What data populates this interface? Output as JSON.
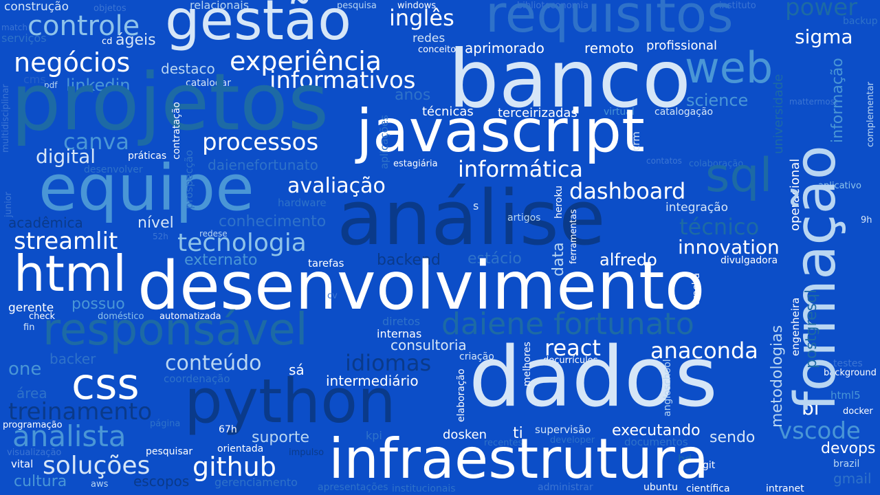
{
  "palette": {
    "background": "#0c4ec8",
    "white": "#ffffff",
    "pale": "#d6e6f7",
    "light": "#b9d6f2",
    "sky": "#8ec3ea",
    "steel": "#4a96d6",
    "mid": "#2f72c9",
    "faint": "#3c75d3",
    "dim": "#2661c8",
    "teal": "#1d6aa5",
    "navy": "#0a3a8a",
    "dark": "#072f73"
  },
  "words": {
    "construcao": "construção",
    "objetos": "objetos",
    "relacionais": "relacionais",
    "pesquisa": "pesquisa",
    "windows": "windows",
    "biblioteconomia": "biblioteconomia",
    "instituto": "instituto",
    "power": "power",
    "gestao": "gestão",
    "controle": "controle",
    "requisitos": "requisitos",
    "ingles": "inglês",
    "backup": "backup",
    "sigma": "sigma",
    "match": "match",
    "servicos": "serviços",
    "cd": "cd",
    "ageis": "ágeis",
    "redes": "redes",
    "conceitos": "conceitos",
    "aprimorado": "aprimorado",
    "remoto": "remoto",
    "profissional": "profissional",
    "negocios": "negócios",
    "experiencia": "experiência",
    "banco": "banco",
    "web": "web",
    "formacao": "formação",
    "destaco": "destaco",
    "informativos": "informativos",
    "cms": "cms",
    "pdf": "pdf",
    "linkedin": "linkedin",
    "catalogar": "catalogar",
    "anos": "anos",
    "projetos": "projetos",
    "science": "science",
    "mattermost": "mattermost",
    "tecnicas": "técnicas",
    "terceirizadas": "terceirizadas",
    "virtual": "virtual",
    "catalogacao": "catalogação",
    "javascript": "javascript",
    "canva": "canva",
    "processos": "processos",
    "digital": "digital",
    "praticas": "práticas",
    "daienefortunato": "daienefortunato",
    "estagiaria": "estagiária",
    "informatica": "informática",
    "contatos": "contatos",
    "colaboracao": "colaboração",
    "desenvolver": "desenvolver",
    "equipe": "equipe",
    "sql": "sql",
    "aplicativo": "aplicativo",
    "avaliacao": "avaliação",
    "dashboard": "dashboard",
    "hardware": "hardware",
    "integracao": "integração",
    "analise": "análise",
    "academica": "acadêmica",
    "nivel": "nível",
    "conhecimento": "conhecimento",
    "s": "s",
    "artigos": "artigos",
    "tecnico": "técnico",
    "9h": "9h",
    "redese": "redese",
    "52h": "52h",
    "streamlit": "streamlit",
    "tecnologia": "tecnologia",
    "innovation": "innovation",
    "externato": "externato",
    "tarefas": "tarefas",
    "backend": "backend",
    "estacio": "estácio",
    "alfredo": "alfredo",
    "divulgadora": "divulgadora",
    "html": "html",
    "desenvolvimento": "desenvolvimento",
    "cv": "cv",
    "gerente": "gerente",
    "possuo": "possuo",
    "check": "check",
    "domestico": "doméstico",
    "automatizada": "automatizada",
    "responsavel": "responsável",
    "daiene_fortunato": "daiene fortunato",
    "fin": "fin",
    "diretos": "diretos",
    "internas": "internas",
    "consultoria": "consultoria",
    "react": "react",
    "anaconda": "anaconda",
    "backer": "backer",
    "idiomas": "idiomas",
    "criacao": "criação",
    "decurriculos": "decurrículos",
    "conteudo": "conteúdo",
    "one": "one",
    "testes": "testes",
    "background": "background",
    "css": "css",
    "coordenacao": "coordenação",
    "sa": "sá",
    "intermediario": "intermediário",
    "dados": "dados",
    "area": "área",
    "python": "python",
    "html5": "html5",
    "treinamento": "treinamento",
    "bi": "bi",
    "docker": "docker",
    "programacao": "programação",
    "pagina": "página",
    "analista": "analista",
    "67h": "67h",
    "supervisao": "supervisão",
    "executando": "executando",
    "vscode": "vscode",
    "suporte": "suporte",
    "kpi": "kpi",
    "dosken": "dosken",
    "ti": "ti",
    "sendo": "sendo",
    "developer": "developer",
    "recentes": "recentes",
    "documentos": "documentos",
    "visualizacao": "visualização",
    "pesquisar": "pesquisar",
    "orientada": "orientada",
    "impulso": "impulso",
    "bd": "bd",
    "devops": "devops",
    "infraestrutura": "infraestrutura",
    "vital": "vital",
    "solucoes": "soluções",
    "github": "github",
    "git": "git",
    "brazil": "brazil",
    "cultura": "cultura",
    "aws": "aws",
    "escopos": "escopos",
    "gerenciamento": "gerenciamento",
    "gmail": "gmail",
    "apresentacoes": "apresentações",
    "institucionais": "institucionais",
    "administrar": "administrar",
    "ubuntu": "ubuntu",
    "cientifica": "científica",
    "intranet": "intranet",
    "multidisciplinar": "multidisciplinar",
    "contratacao": "contratação",
    "prospeccao": "prospecção",
    "aplicacoes": "aplicações",
    "crm": "crm",
    "heroku": "heroku",
    "ferramentas": "ferramentas",
    "data": "data",
    "cracha": "crachá",
    "operacional": "operacional",
    "universidade": "universidade",
    "informacao": "informação",
    "complementar": "complementar",
    "metodologias": "metodologias",
    "engenheira": "engenheira",
    "postgresql": "postgresql",
    "elaboracao": "elaboração",
    "melhores": "melhores",
    "angloschool": "angloschool",
    "junior": "junior"
  }
}
